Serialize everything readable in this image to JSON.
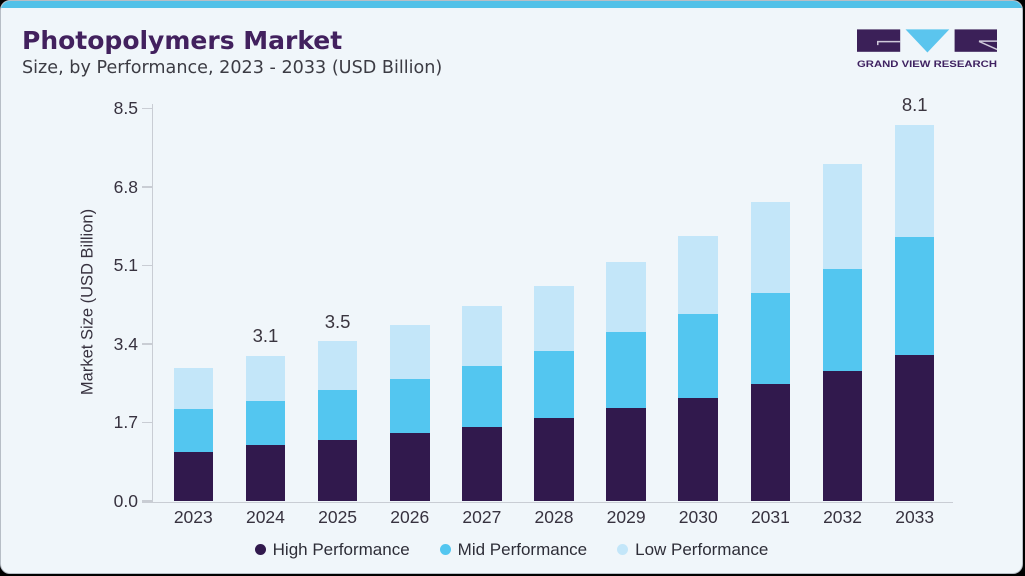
{
  "header": {
    "title": "Photopolymers Market",
    "subtitle": "Size, by Performance, 2023 - 2033 (USD Billion)"
  },
  "brand": {
    "logo_text": "GRAND VIEW RESEARCH"
  },
  "colors": {
    "card_background": "#f0f6fa",
    "top_strip": "#52c1e8",
    "title_text": "#42215e",
    "high_performance": "#31194d",
    "mid_performance": "#53c6f0",
    "low_performance": "#c3e6f9",
    "axis_line": "#c9cdd4",
    "logo_purple": "#3b2058",
    "logo_triangle": "#5bc5ee"
  },
  "chart_data": {
    "type": "bar",
    "stacked": true,
    "title": "Photopolymers Market",
    "subtitle": "Size, by Performance, 2023 - 2033 (USD Billion)",
    "xlabel": "",
    "ylabel": "Market Size (USD Billion)",
    "categories": [
      "2023",
      "2024",
      "2025",
      "2026",
      "2027",
      "2028",
      "2029",
      "2030",
      "2031",
      "2032",
      "2033"
    ],
    "series": [
      {
        "name": "High Performance",
        "color": "#31194d",
        "values": [
          1.07,
          1.21,
          1.31,
          1.48,
          1.61,
          1.8,
          2.01,
          2.23,
          2.53,
          2.82,
          3.17
        ]
      },
      {
        "name": "Mid Performance",
        "color": "#53c6f0",
        "values": [
          0.92,
          0.96,
          1.09,
          1.17,
          1.31,
          1.45,
          1.64,
          1.82,
          1.98,
          2.2,
          2.55
        ]
      },
      {
        "name": "Low Performance",
        "color": "#c3e6f9",
        "values": [
          0.88,
          0.97,
          1.06,
          1.17,
          1.29,
          1.4,
          1.52,
          1.69,
          1.96,
          2.27,
          2.42
        ]
      }
    ],
    "totals": [
      2.87,
      3.14,
      3.46,
      3.82,
      4.21,
      4.65,
      5.17,
      5.74,
      6.47,
      7.29,
      8.14
    ],
    "bar_labels": [
      {
        "category": "2024",
        "text": "3.1"
      },
      {
        "category": "2025",
        "text": "3.5"
      },
      {
        "category": "2033",
        "text": "8.1"
      }
    ],
    "yticks": [
      "0.0",
      "1.7",
      "3.4",
      "5.1",
      "6.8",
      "8.5"
    ],
    "ylim": [
      0,
      8.5
    ],
    "grid": false,
    "legend_position": "bottom"
  }
}
